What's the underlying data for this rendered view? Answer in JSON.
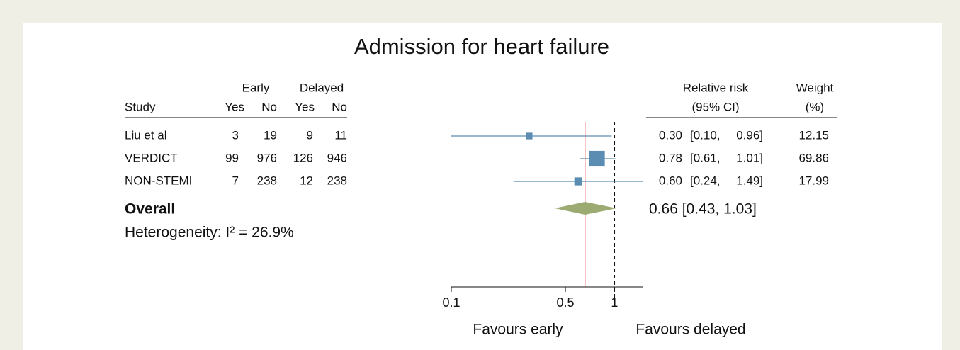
{
  "chart_data": {
    "type": "forest",
    "title": "Admission for heart failure",
    "headers": {
      "study": "Study",
      "early": "Early",
      "delayed": "Delayed",
      "yes": "Yes",
      "no": "No",
      "estimate": "Relative risk",
      "ci": "(95% CI)",
      "weight": "Weight",
      "weight_unit": "(%)"
    },
    "studies": [
      "Liu et al",
      "VERDICT",
      "NON-STEMI"
    ],
    "early_yes": [
      3,
      99,
      7
    ],
    "early_no": [
      19,
      976,
      238
    ],
    "delayed_yes": [
      9,
      126,
      12
    ],
    "delayed_no": [
      11,
      946,
      238
    ],
    "rr": [
      0.3,
      0.78,
      0.6
    ],
    "rr_labels": [
      "0.30",
      "0.78",
      "0.60"
    ],
    "ci_low": [
      0.1,
      0.61,
      0.24
    ],
    "ci_low_labels": [
      "[0.10,",
      "[0.61,",
      "[0.24,"
    ],
    "ci_high": [
      0.96,
      1.01,
      1.49
    ],
    "ci_high_labels": [
      "0.96]",
      "1.01]",
      "1.49]"
    ],
    "weights": [
      12.15,
      69.86,
      17.99
    ],
    "overall": {
      "name": "Overall",
      "rr": 0.66,
      "ci_low": 0.43,
      "ci_high": 1.03,
      "label": "0.66 [0.43, 1.03]"
    },
    "heterogeneity": "Heterogeneity: I² = 26.9%",
    "xscale": "log",
    "xlim": [
      0.1,
      1.5
    ],
    "xticks": [
      0.1,
      0.5,
      1
    ],
    "null_value": 1,
    "favours_left": "Favours early",
    "favours_right": "Favours delayed",
    "marker_color": "#5b8db3",
    "diamond_color": "#9bab72",
    "overall_line_color": "#f09a9a"
  }
}
